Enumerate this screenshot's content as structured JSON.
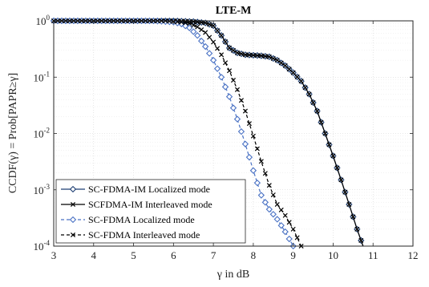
{
  "chart_data": {
    "type": "line",
    "title": "LTE-M",
    "xlabel": "γ in dB",
    "ylabel": "CCDF(γ) = Prob[PAPR≥γ]",
    "xlim": [
      3,
      12
    ],
    "ylim": [
      0.0001,
      1
    ],
    "yscale": "log",
    "grid": true,
    "x_ticks": [
      "3",
      "4",
      "5",
      "6",
      "7",
      "8",
      "9",
      "10",
      "11",
      "12"
    ],
    "y_ticks": [
      {
        "base": "10",
        "exp": "0"
      },
      {
        "base": "10",
        "exp": "-1"
      },
      {
        "base": "10",
        "exp": "-2"
      },
      {
        "base": "10",
        "exp": "-3"
      },
      {
        "base": "10",
        "exp": "-4"
      }
    ],
    "legend_position": "bottom-left",
    "series": [
      {
        "name": "SC-FDMA-IM Localized mode",
        "color": "#1f3f73",
        "line_style": "solid",
        "marker": "diamond",
        "x": [
          3.0,
          5.0,
          6.0,
          6.5,
          6.8,
          7.0,
          7.2,
          7.4,
          7.6,
          7.8,
          8.0,
          8.2,
          8.4,
          8.6,
          8.8,
          9.0,
          9.2,
          9.4,
          9.6,
          9.8,
          10.0,
          10.2,
          10.4,
          10.6,
          10.75
        ],
        "y": [
          1.0,
          1.0,
          1.0,
          0.97,
          0.92,
          0.82,
          0.55,
          0.33,
          0.27,
          0.25,
          0.245,
          0.24,
          0.23,
          0.2,
          0.16,
          0.12,
          0.085,
          0.05,
          0.025,
          0.01,
          0.004,
          0.0015,
          0.00055,
          0.0002,
          0.0001
        ]
      },
      {
        "name": "SCFDMA-IM Interleaved mode",
        "color": "#000000",
        "line_style": "solid",
        "marker": "x",
        "x": [
          3.0,
          5.0,
          6.0,
          6.5,
          6.8,
          7.0,
          7.2,
          7.4,
          7.6,
          7.8,
          8.0,
          8.2,
          8.4,
          8.6,
          8.8,
          9.0,
          9.2,
          9.4,
          9.6,
          9.8,
          10.0,
          10.2,
          10.4,
          10.6,
          10.75
        ],
        "y": [
          1.0,
          1.0,
          1.0,
          0.97,
          0.92,
          0.82,
          0.55,
          0.33,
          0.27,
          0.25,
          0.245,
          0.24,
          0.23,
          0.2,
          0.16,
          0.12,
          0.085,
          0.05,
          0.025,
          0.01,
          0.004,
          0.0015,
          0.00055,
          0.0002,
          0.0001
        ]
      },
      {
        "name": "SC-FDMA Localized mode",
        "color": "#4a72c4",
        "line_style": "dashed",
        "marker": "diamond",
        "x": [
          3.0,
          5.5,
          6.0,
          6.2,
          6.4,
          6.6,
          6.8,
          7.0,
          7.2,
          7.4,
          7.6,
          7.8,
          8.0,
          8.2,
          8.4,
          8.6,
          8.8,
          9.0
        ],
        "y": [
          1.0,
          1.0,
          0.95,
          0.88,
          0.75,
          0.55,
          0.35,
          0.2,
          0.1,
          0.045,
          0.018,
          0.0065,
          0.0022,
          0.0008,
          0.00045,
          0.0003,
          0.00018,
          0.0001
        ]
      },
      {
        "name": "SC-FDMA Interleaved mode",
        "color": "#000000",
        "line_style": "dashed",
        "marker": "x",
        "x": [
          3.0,
          5.8,
          6.2,
          6.4,
          6.6,
          6.8,
          7.0,
          7.2,
          7.4,
          7.6,
          7.8,
          8.0,
          8.2,
          8.4,
          8.6,
          8.8,
          9.0,
          9.2
        ],
        "y": [
          1.0,
          1.0,
          0.95,
          0.9,
          0.78,
          0.62,
          0.42,
          0.25,
          0.13,
          0.06,
          0.025,
          0.009,
          0.0032,
          0.0012,
          0.00055,
          0.00035,
          0.0002,
          0.0001
        ]
      }
    ]
  }
}
